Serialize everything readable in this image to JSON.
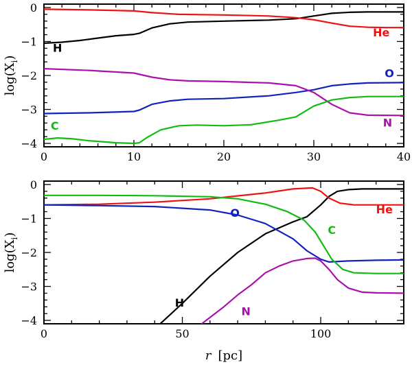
{
  "chart_data": [
    {
      "type": "line",
      "xlabel": "",
      "ylabel": "log(X",
      "ylabel_sub": "i",
      "xlim": [
        0,
        40
      ],
      "ylim": [
        -4.1,
        0.1
      ],
      "xticks": [
        0,
        10,
        20,
        30,
        40
      ],
      "yticks": [
        0,
        -1,
        -2,
        -3,
        -4
      ],
      "xtick_labels": [
        "0",
        "10",
        "20",
        "30",
        "40"
      ],
      "ytick_labels": [
        "0",
        "−1",
        "−2",
        "−3",
        "−4"
      ],
      "series": [
        {
          "name": "H",
          "color": "#000000",
          "x": [
            0,
            2,
            4,
            6,
            8,
            10,
            10.6,
            12,
            14,
            16,
            20,
            25,
            28,
            30,
            32,
            34,
            36,
            40
          ],
          "y": [
            -1.05,
            -1.02,
            -0.97,
            -0.9,
            -0.83,
            -0.79,
            -0.76,
            -0.6,
            -0.48,
            -0.43,
            -0.4,
            -0.37,
            -0.33,
            -0.25,
            -0.17,
            -0.14,
            -0.13,
            -0.13
          ],
          "label_at": [
            1.5,
            -1.3
          ]
        },
        {
          "name": "He",
          "color": "#ee1111",
          "x": [
            0,
            5,
            10,
            12,
            15,
            20,
            25,
            28,
            30,
            32,
            34,
            36,
            38,
            40
          ],
          "y": [
            -0.05,
            -0.07,
            -0.1,
            -0.15,
            -0.2,
            -0.22,
            -0.25,
            -0.3,
            -0.36,
            -0.46,
            -0.55,
            -0.58,
            -0.59,
            -0.59
          ],
          "label_at": [
            37.5,
            -0.85
          ]
        },
        {
          "name": "O",
          "color": "#1122bb",
          "x": [
            0,
            5,
            10,
            10.6,
            12,
            14,
            16,
            20,
            25,
            28,
            30,
            32,
            34,
            36,
            40
          ],
          "y": [
            -3.12,
            -3.1,
            -3.06,
            -3.02,
            -2.85,
            -2.75,
            -2.7,
            -2.68,
            -2.6,
            -2.5,
            -2.42,
            -2.3,
            -2.25,
            -2.22,
            -2.21
          ],
          "label_at": [
            38.4,
            -2.05
          ]
        },
        {
          "name": "N",
          "color": "#aa11aa",
          "x": [
            0,
            5,
            10,
            12,
            14,
            16,
            20,
            25,
            28,
            30,
            32,
            34,
            36,
            40
          ],
          "y": [
            -1.8,
            -1.85,
            -1.93,
            -2.05,
            -2.13,
            -2.16,
            -2.18,
            -2.22,
            -2.3,
            -2.5,
            -2.85,
            -3.1,
            -3.17,
            -3.18
          ],
          "label_at": [
            38.2,
            -3.5
          ]
        },
        {
          "name": "C",
          "color": "#11bb11",
          "x": [
            0,
            1.5,
            3,
            5,
            8,
            10,
            10.6,
            11.5,
            13,
            15,
            17,
            20,
            23,
            26,
            28,
            30,
            32,
            34,
            36,
            40
          ],
          "y": [
            -3.88,
            -3.84,
            -3.86,
            -3.92,
            -3.98,
            -4.0,
            -3.98,
            -3.82,
            -3.6,
            -3.48,
            -3.46,
            -3.48,
            -3.45,
            -3.32,
            -3.22,
            -2.9,
            -2.72,
            -2.65,
            -2.62,
            -2.62
          ],
          "label_at": [
            1.2,
            -3.6
          ]
        }
      ]
    },
    {
      "type": "line",
      "xlabel": "r",
      "xlabel_unit": "[pc]",
      "ylabel": "log(X",
      "ylabel_sub": "i",
      "xlim": [
        0,
        130
      ],
      "ylim": [
        -4.1,
        0.1
      ],
      "xticks": [
        0,
        50,
        100
      ],
      "yticks": [
        0,
        -1,
        -2,
        -3,
        -4
      ],
      "xtick_labels": [
        "0",
        "50",
        "100"
      ],
      "ytick_labels": [
        "0",
        "−1",
        "−2",
        "−3",
        "−4"
      ],
      "series": [
        {
          "name": "H",
          "color": "#000000",
          "x": [
            42,
            50,
            60,
            70,
            80,
            90,
            95,
            100,
            103,
            106,
            110,
            115,
            120,
            130
          ],
          "y": [
            -4.1,
            -3.5,
            -2.7,
            -2.0,
            -1.45,
            -1.1,
            -0.95,
            -0.6,
            -0.35,
            -0.2,
            -0.15,
            -0.13,
            -0.13,
            -0.13
          ],
          "label_at": [
            49,
            -3.6
          ]
        },
        {
          "name": "He",
          "color": "#ee1111",
          "x": [
            0,
            20,
            40,
            60,
            80,
            90,
            97,
            100,
            103,
            107,
            112,
            120,
            130
          ],
          "y": [
            -0.6,
            -0.58,
            -0.52,
            -0.42,
            -0.25,
            -0.13,
            -0.1,
            -0.2,
            -0.4,
            -0.55,
            -0.6,
            -0.6,
            -0.6
          ],
          "label_at": [
            123,
            -0.85
          ]
        },
        {
          "name": "O",
          "color": "#1122bb",
          "x": [
            0,
            20,
            40,
            60,
            70,
            80,
            90,
            95,
            100,
            103,
            110,
            120,
            130
          ],
          "y": [
            -0.6,
            -0.62,
            -0.65,
            -0.75,
            -0.9,
            -1.15,
            -1.6,
            -1.95,
            -2.2,
            -2.28,
            -2.25,
            -2.23,
            -2.22
          ],
          "label_at": [
            69,
            -0.95
          ]
        },
        {
          "name": "N",
          "color": "#aa11aa",
          "x": [
            57,
            65,
            70,
            75,
            80,
            85,
            90,
            95,
            98,
            100,
            103,
            106,
            110,
            115,
            120,
            130
          ],
          "y": [
            -4.1,
            -3.6,
            -3.25,
            -2.95,
            -2.6,
            -2.4,
            -2.25,
            -2.18,
            -2.17,
            -2.25,
            -2.5,
            -2.8,
            -3.05,
            -3.17,
            -3.19,
            -3.2
          ],
          "label_at": [
            73,
            -3.85
          ]
        },
        {
          "name": "C",
          "color": "#11bb11",
          "x": [
            0,
            20,
            40,
            60,
            70,
            80,
            88,
            94,
            98,
            101,
            104,
            108,
            112,
            120,
            130
          ],
          "y": [
            -0.32,
            -0.32,
            -0.33,
            -0.36,
            -0.42,
            -0.58,
            -0.8,
            -1.05,
            -1.4,
            -1.8,
            -2.2,
            -2.5,
            -2.6,
            -2.62,
            -2.62
          ],
          "label_at": [
            104,
            -1.45
          ]
        }
      ]
    }
  ]
}
